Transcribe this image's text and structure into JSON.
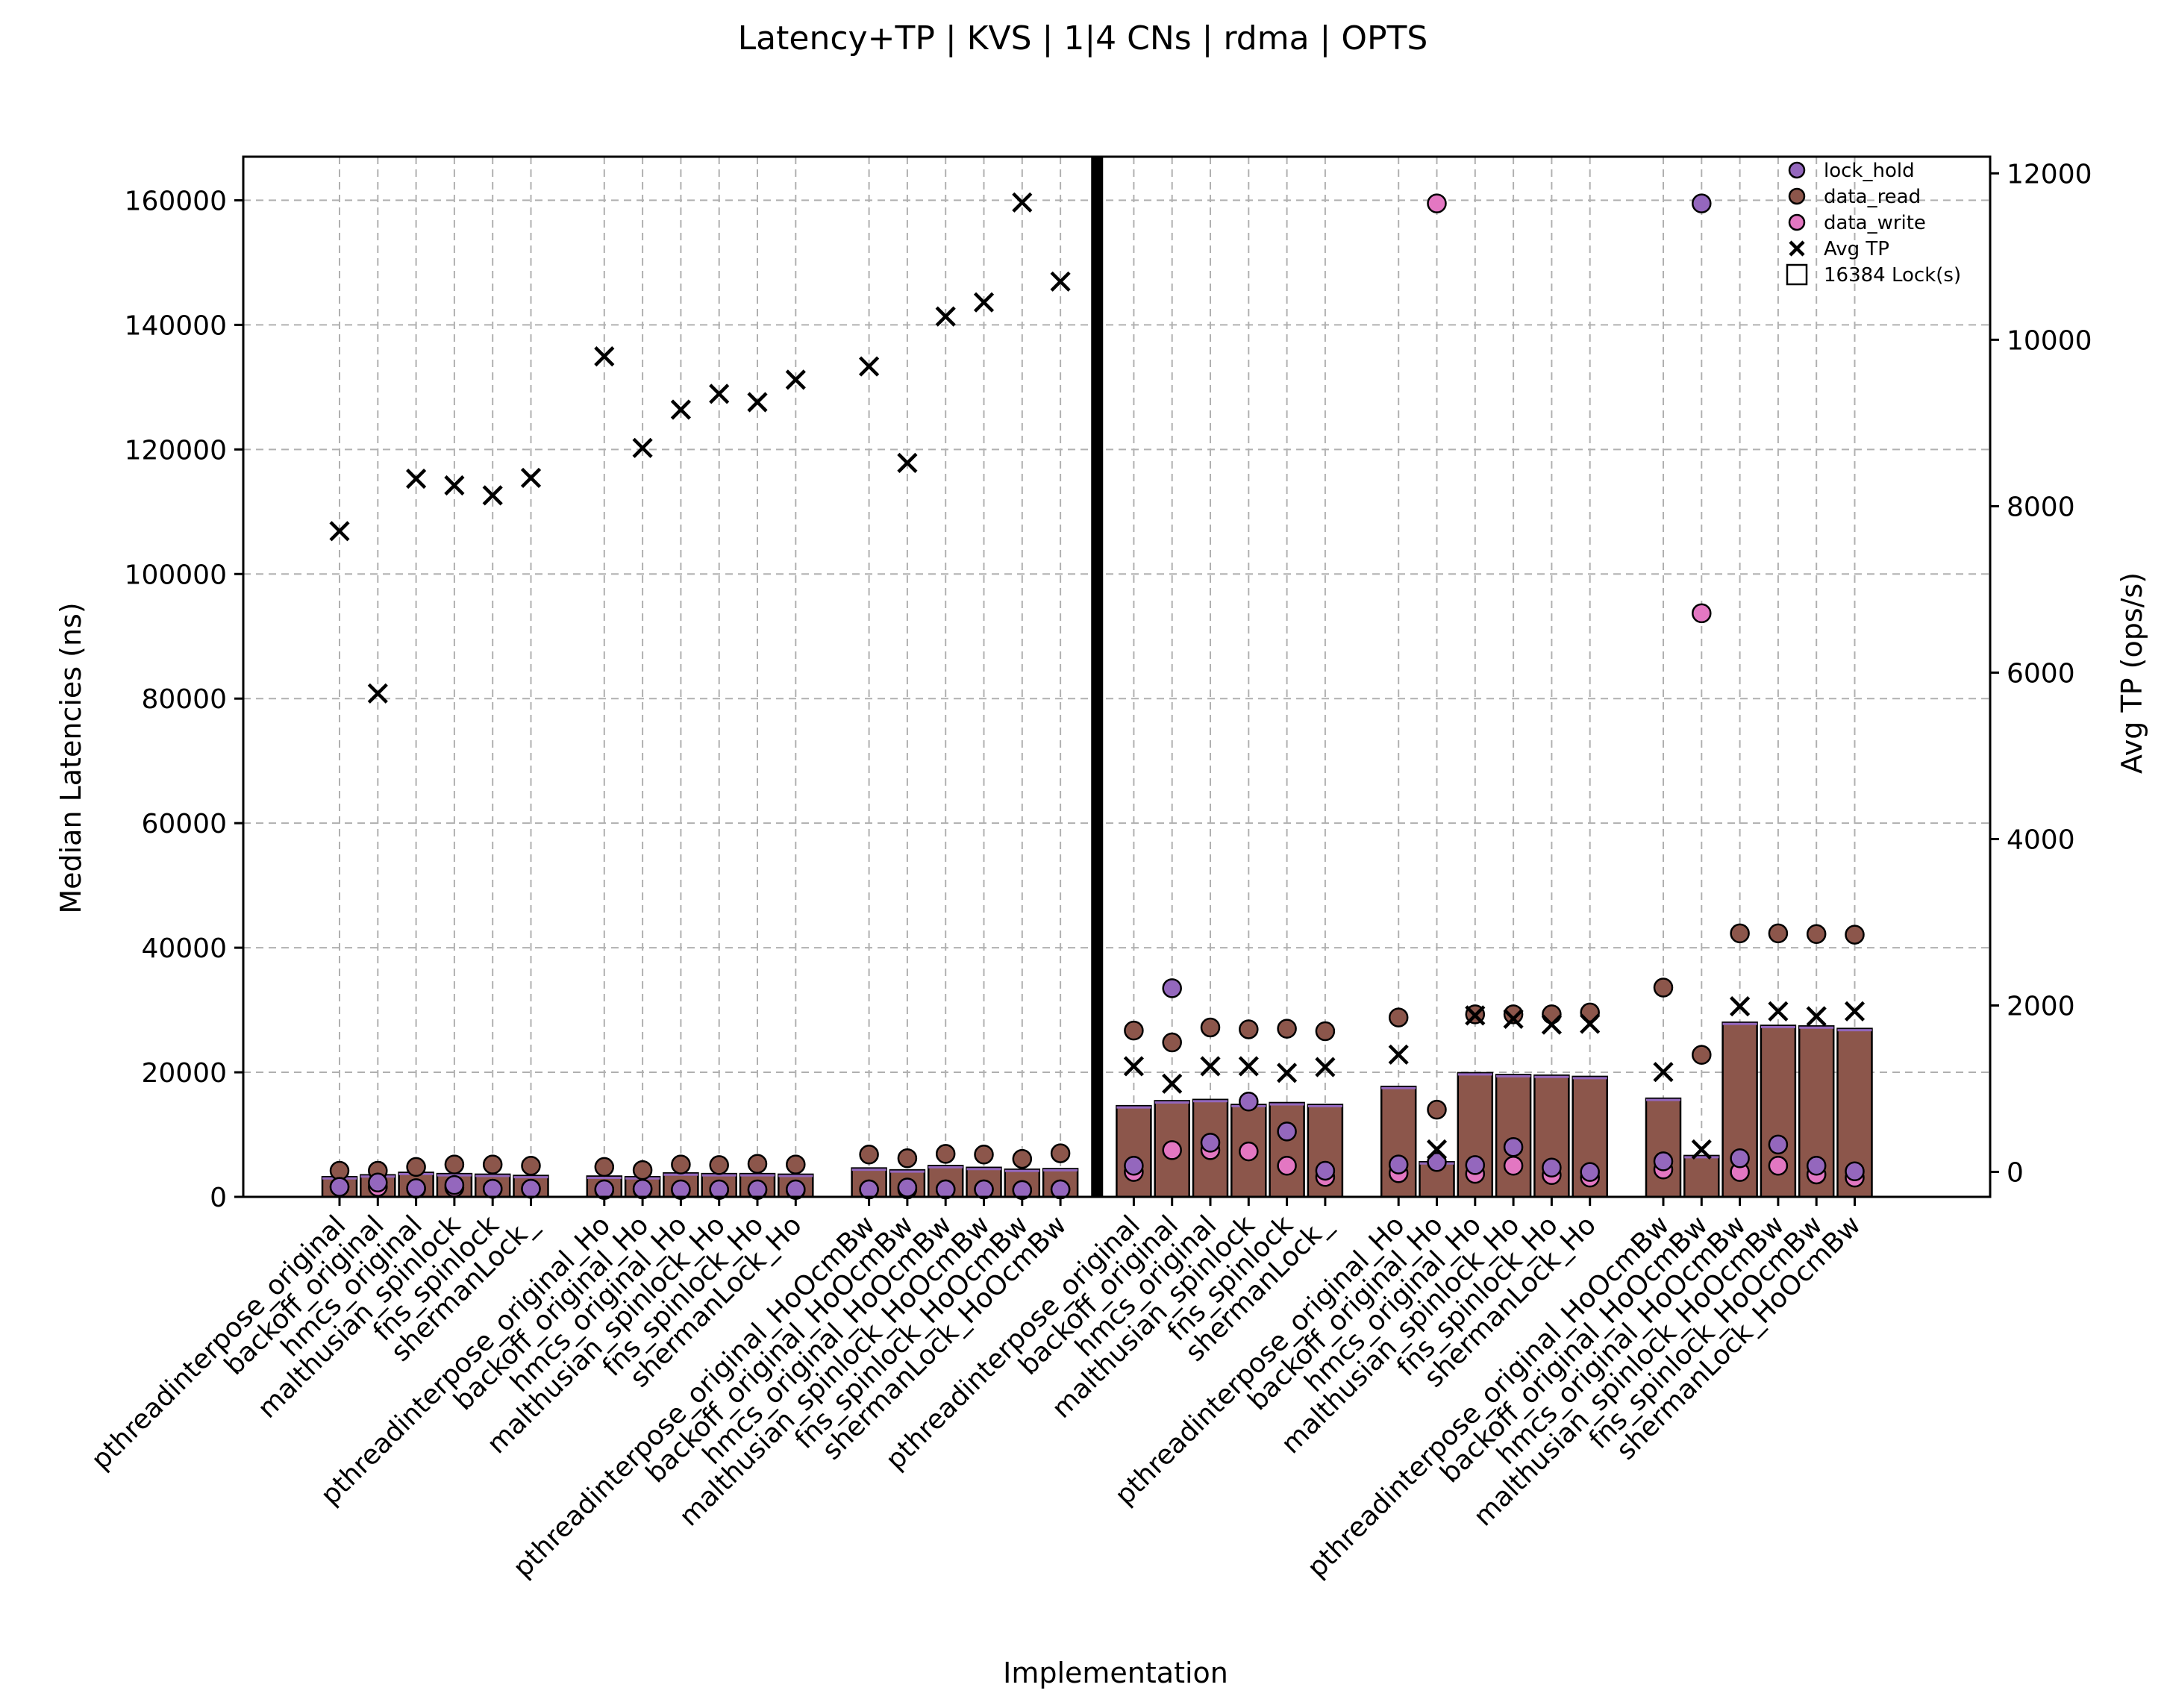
{
  "chart_data": {
    "type": "bar",
    "title": "Latency+TP | KVS | 1|4 CNs | rdma | OPTS",
    "xlabel": "Implementation",
    "ylabel": "Median Latencies (ns)",
    "y2label": "Avg TP (ops/s)",
    "ylim": [
      0,
      167000
    ],
    "y2lim": [
      -300,
      12200
    ],
    "yticks": [
      0,
      20000,
      40000,
      60000,
      80000,
      100000,
      120000,
      140000,
      160000
    ],
    "y2ticks": [
      0,
      2000,
      4000,
      6000,
      8000,
      10000,
      12000
    ],
    "grid": true,
    "legend_position": "top-right",
    "legend": {
      "lock_hold": "lock_hold",
      "data_read": "data_read",
      "data_write": "data_write",
      "avg_tp": "Avg TP",
      "locks": "16384 Lock(s)"
    },
    "colors": {
      "bar": "#8c564b",
      "bar_top": "#9467bd",
      "lock_hold": "#9467bd",
      "data_read": "#8c564b",
      "data_write": "#e377c2",
      "tp_marker": "#000000",
      "divider": "#000000"
    },
    "categories": [
      "pthreadinterpose_original",
      "backoff_original",
      "hmcs_original",
      "malthusian_spinlock",
      "fns_spinlock",
      "shermanLock_",
      "pthreadinterpose_original_Ho",
      "backoff_original_Ho",
      "hmcs_original_Ho",
      "malthusian_spinlock_Ho",
      "fns_spinlock_Ho",
      "shermanLock_Ho",
      "pthreadinterpose_original_HoOcmBw",
      "backoff_original_HoOcmBw",
      "hmcs_original_HoOcmBw",
      "malthusian_spinlock_HoOcmBw",
      "fns_spinlock_HoOcmBw",
      "shermanLock_HoOcmBw",
      "pthreadinterpose_original",
      "backoff_original",
      "hmcs_original",
      "malthusian_spinlock",
      "fns_spinlock",
      "shermanLock_",
      "pthreadinterpose_original_Ho",
      "backoff_original_Ho",
      "hmcs_original_Ho",
      "malthusian_spinlock_Ho",
      "fns_spinlock_Ho",
      "shermanLock_Ho",
      "pthreadinterpose_original_HoOcmBw",
      "backoff_original_HoOcmBw",
      "hmcs_original_HoOcmBw",
      "malthusian_spinlock_HoOcmBw",
      "fns_spinlock_HoOcmBw",
      "shermanLock_HoOcmBw"
    ],
    "series": [
      {
        "name": "16384 Lock(s)",
        "values": [
          3200,
          3500,
          3900,
          3700,
          3600,
          3400,
          3300,
          3200,
          3800,
          3700,
          3700,
          3600,
          4600,
          4300,
          5000,
          4700,
          4400,
          4500,
          14600,
          15400,
          15600,
          14800,
          15100,
          14800,
          17700,
          5600,
          19900,
          19600,
          19500,
          19300,
          15800,
          6600,
          28000,
          27500,
          27400,
          27000
        ]
      },
      {
        "name": "lock_hold",
        "values": [
          1600,
          2300,
          1400,
          1900,
          1300,
          1300,
          1200,
          1300,
          1200,
          1200,
          1200,
          1200,
          1200,
          1500,
          1200,
          1200,
          1100,
          1200,
          5000,
          33500,
          8700,
          15300,
          10500,
          4200,
          5200,
          5600,
          5100,
          8000,
          4700,
          4000,
          5700,
          159500,
          6200,
          8400,
          5000,
          4100
        ]
      },
      {
        "name": "data_read",
        "values": [
          4200,
          4200,
          4800,
          5200,
          5200,
          5000,
          4800,
          4300,
          5200,
          5100,
          5300,
          5200,
          6800,
          6200,
          6900,
          6800,
          6100,
          7000,
          26700,
          24800,
          27200,
          26900,
          27000,
          26600,
          28800,
          14000,
          29300,
          29300,
          29300,
          29600,
          33600,
          22800,
          42300,
          42300,
          42200,
          42100
        ]
      },
      {
        "name": "data_write",
        "values": [
          1600,
          1600,
          1300,
          1500,
          1300,
          1300,
          1100,
          1200,
          1100,
          1100,
          1100,
          1100,
          1200,
          1200,
          1200,
          1200,
          1100,
          1200,
          4000,
          7500,
          7500,
          7300,
          5000,
          3200,
          3800,
          159500,
          3700,
          5000,
          3500,
          3100,
          4400,
          93700,
          4000,
          5000,
          3600,
          3100
        ]
      },
      {
        "name": "Avg TP",
        "axis": "right",
        "values": [
          7700,
          5750,
          8330,
          8250,
          8130,
          8340,
          9800,
          8700,
          9160,
          9350,
          9250,
          9520,
          9680,
          8520,
          10280,
          10450,
          11650,
          10700,
          1270,
          1060,
          1270,
          1270,
          1190,
          1260,
          1410,
          270,
          1880,
          1840,
          1770,
          1780,
          1200,
          270,
          1990,
          1930,
          1870,
          1930
        ]
      }
    ],
    "divider_after_index": 17
  }
}
